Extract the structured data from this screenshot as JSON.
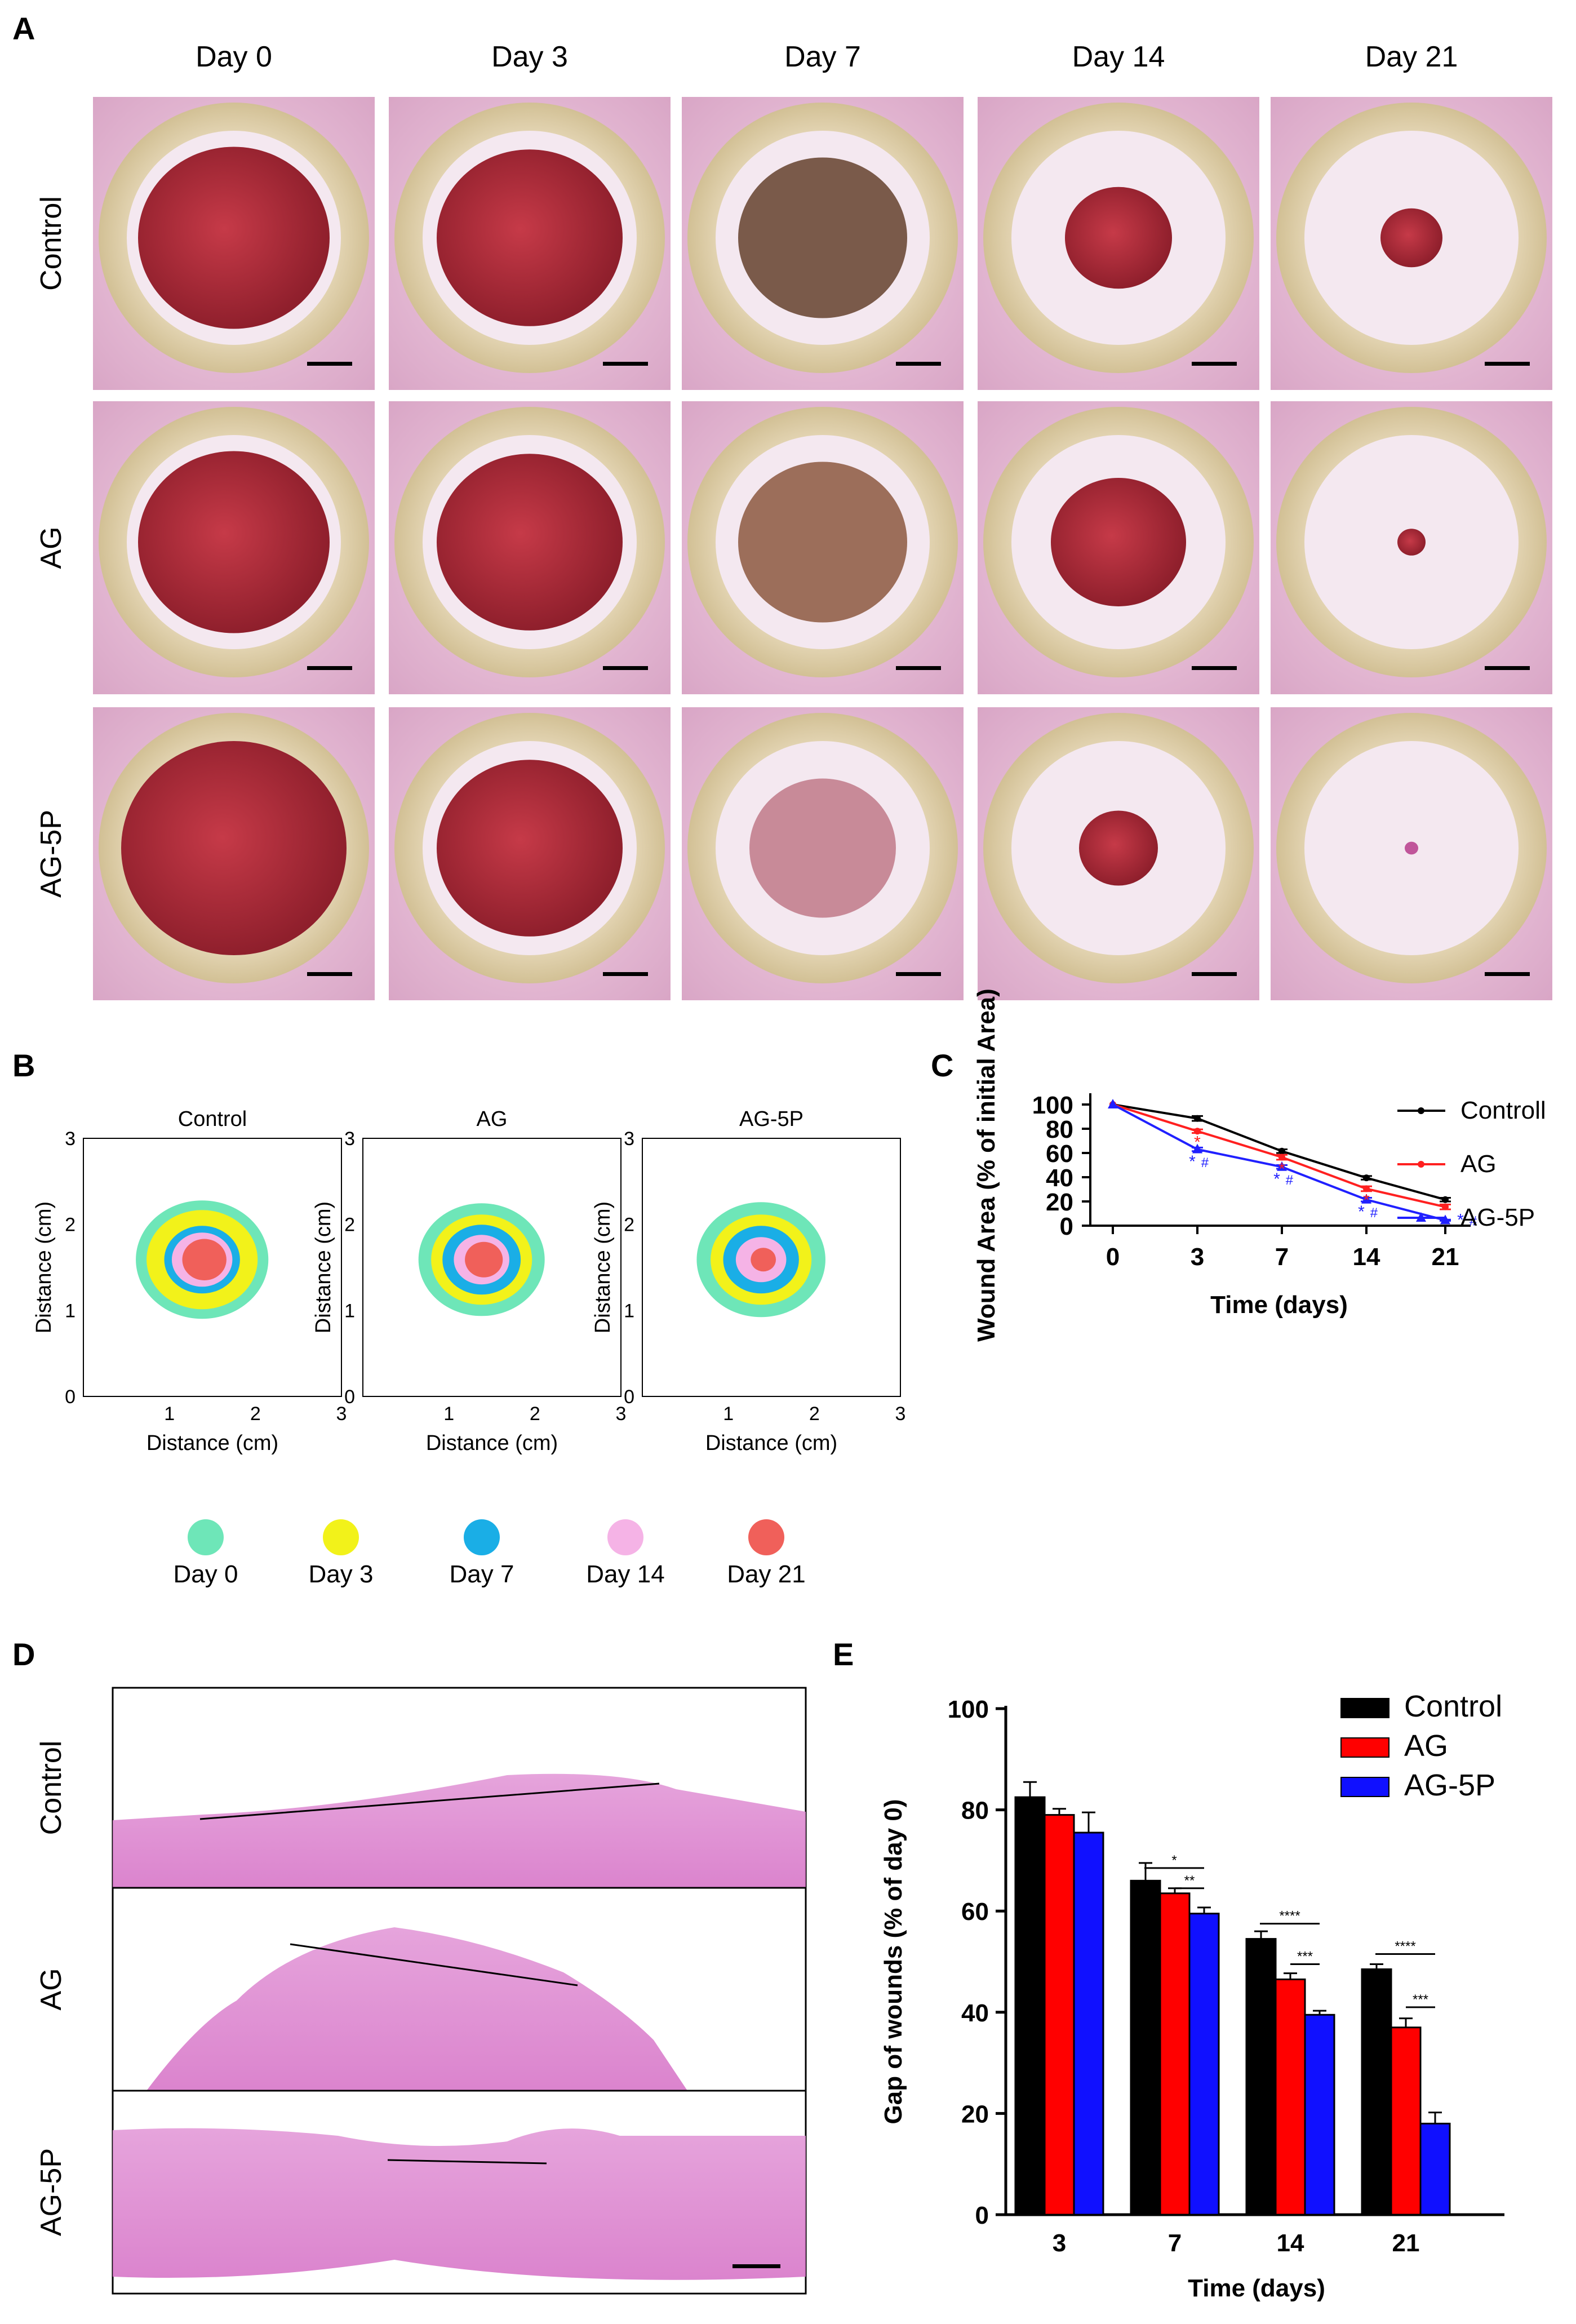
{
  "panels": {
    "A": {
      "letter": "A",
      "columns": [
        "Day 0",
        "Day 3",
        "Day 7",
        "Day 14",
        "Day 21"
      ],
      "rows": [
        "Control",
        "AG",
        "AG-5P"
      ]
    },
    "B": {
      "letter": "B",
      "plots": [
        {
          "title": "Control",
          "ylabel": "Distance (cm)",
          "xlabel": "Distance (cm)"
        },
        {
          "title": "AG",
          "ylabel": "Distance (cm)",
          "xlabel": "Distance (cm)"
        },
        {
          "title": "AG-5P",
          "ylabel": "Distance (cm)",
          "xlabel": "Distance (cm)"
        }
      ],
      "ticks": [
        "0",
        "1",
        "2",
        "3"
      ],
      "legend": [
        {
          "label": "Day 0",
          "color": "#6ee6b8"
        },
        {
          "label": "Day 3",
          "color": "#f2f21a"
        },
        {
          "label": "Day 7",
          "color": "#1aaee6"
        },
        {
          "label": "Day 14",
          "color": "#f5b3e6"
        },
        {
          "label": "Day 21",
          "color": "#f0605a"
        }
      ]
    },
    "C": {
      "letter": "C",
      "sig_star": "*",
      "sig_hash": "#"
    },
    "D": {
      "letter": "D",
      "rows": [
        "Control",
        "AG",
        "AG-5P"
      ]
    },
    "E": {
      "letter": "E",
      "sig_labels": [
        "*",
        "**",
        "****",
        "***",
        "****",
        "***"
      ]
    }
  },
  "chart_data": [
    {
      "type": "line",
      "panel": "C",
      "x": [
        "0",
        "3",
        "7",
        "14",
        "21"
      ],
      "series": [
        {
          "name": "Controll",
          "color": "#000000",
          "values": [
            100,
            88.5,
            61.5,
            39.5,
            21.5
          ],
          "errors": [
            0,
            2,
            1.5,
            1.5,
            1.5
          ]
        },
        {
          "name": "AG",
          "color": "#ff2020",
          "values": [
            100,
            78,
            56.5,
            30.5,
            15.5
          ],
          "errors": [
            0,
            1.5,
            2,
            2,
            2
          ]
        },
        {
          "name": "AG-5P",
          "color": "#2020ff",
          "values": [
            100,
            63,
            48.5,
            21.5,
            4.5
          ],
          "errors": [
            0,
            1.5,
            1.5,
            1.5,
            0.5
          ]
        }
      ],
      "xlabel": "Time (days)",
      "ylabel": "Wound Area (% of initial Area)",
      "ylim": [
        0,
        100
      ],
      "yticks": [
        "0",
        "20",
        "40",
        "60",
        "80",
        "100"
      ],
      "legend": "top-right"
    },
    {
      "type": "bar",
      "panel": "E",
      "categories": [
        "3",
        "7",
        "14",
        "21"
      ],
      "series": [
        {
          "name": "Control",
          "color": "#000000",
          "values": [
            82.5,
            66,
            54.5,
            48.5
          ],
          "errors": [
            3,
            3.5,
            1.5,
            1
          ]
        },
        {
          "name": "AG",
          "color": "#ff0000",
          "values": [
            79,
            63.5,
            46.5,
            37
          ],
          "errors": [
            1.2,
            1,
            1.2,
            1.8
          ]
        },
        {
          "name": "AG-5P",
          "color": "#1010ff",
          "values": [
            75.5,
            59.5,
            39.5,
            18
          ],
          "errors": [
            4,
            1.2,
            0.8,
            2.2
          ]
        }
      ],
      "xlabel": "Time (days)",
      "ylabel": "Gap of wounds (% of day 0)",
      "ylim": [
        0,
        100
      ],
      "yticks": [
        "0",
        "20",
        "40",
        "60",
        "80",
        "100"
      ],
      "legend": "top-right"
    }
  ]
}
